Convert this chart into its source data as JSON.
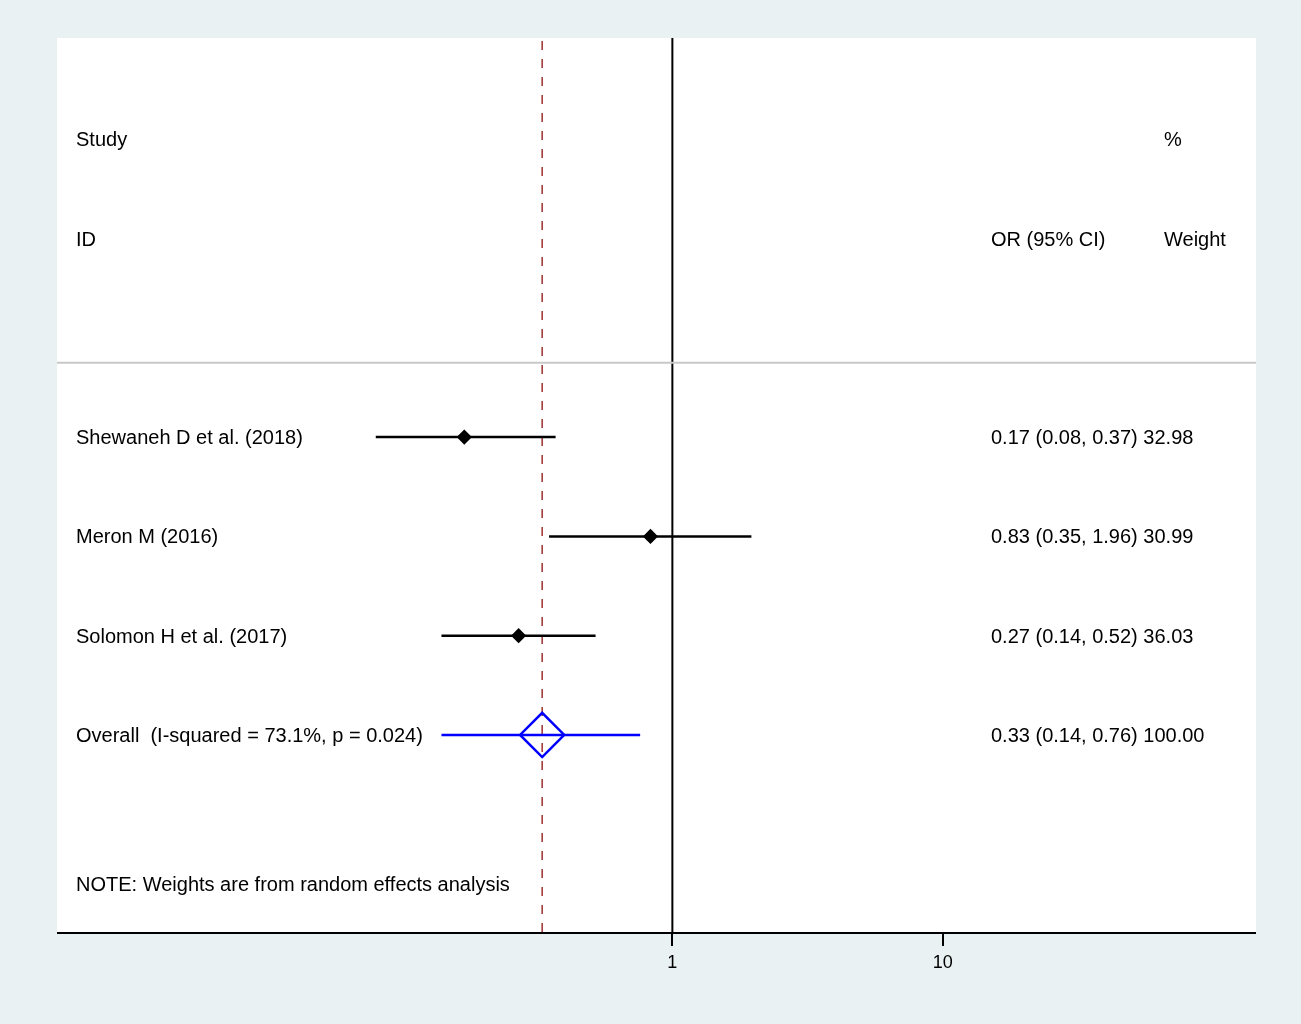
{
  "chart_data": {
    "type": "scatter",
    "orientation": "horizontal",
    "categories": [
      "Shewaneh D et al. (2018)",
      "Meron M (2016)",
      "Solomon H et al. (2017)",
      "Overall  (I-squared = 73.1%, p = 0.024)"
    ],
    "series": [
      {
        "color": "#000000",
        "marker": "diamond",
        "values": [
          0.17,
          0.83,
          0.27,
          null
        ],
        "errors": [
          [
            0.08,
            0.37
          ],
          [
            0.35,
            1.96
          ],
          [
            0.14,
            0.52
          ],
          null
        ]
      },
      {
        "color": "#0000ff",
        "marker": "diamond",
        "values": [
          null,
          null,
          null,
          0.33
        ],
        "errors": [
          null,
          null,
          null,
          [
            0.14,
            0.76
          ]
        ]
      }
    ],
    "value_labels": [
      "0.17 (0.08, 0.37) 32.98",
      "0.83 (0.35, 1.96) 30.99",
      "0.27 (0.14, 0.52) 36.03",
      "0.33 (0.14, 0.76) 100.00"
    ],
    "annotations": [
      "Study",
      "ID",
      "%",
      "OR (95% CI)",
      "Weight",
      "NOTE: Weights are from random effects analysis"
    ],
    "ref_lines": [
      {
        "axis": "x",
        "value": 1,
        "color": "#000000"
      },
      {
        "axis": "x",
        "value": 0.33,
        "color": "#a03030",
        "line_style": "dashed"
      }
    ],
    "log": "x",
    "xlim": [
      0.0053,
      144
    ],
    "xticks": [
      1,
      10
    ],
    "grid": false
  }
}
